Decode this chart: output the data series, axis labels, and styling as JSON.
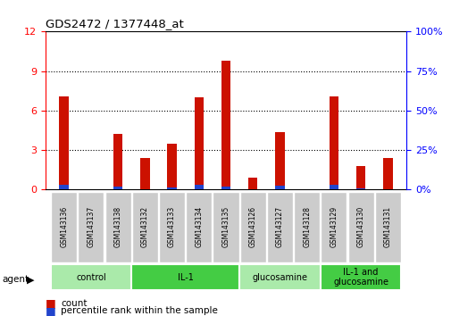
{
  "title": "GDS2472 / 1377448_at",
  "samples": [
    "GSM143136",
    "GSM143137",
    "GSM143138",
    "GSM143132",
    "GSM143133",
    "GSM143134",
    "GSM143135",
    "GSM143126",
    "GSM143127",
    "GSM143128",
    "GSM143129",
    "GSM143130",
    "GSM143131"
  ],
  "count_values": [
    7.1,
    0.0,
    4.2,
    2.4,
    3.5,
    7.0,
    9.8,
    0.9,
    4.4,
    0.0,
    7.1,
    1.8,
    2.4
  ],
  "percentile_values": [
    3.0,
    0.0,
    1.7,
    0.5,
    1.5,
    2.9,
    2.2,
    0.25,
    2.5,
    0.0,
    3.0,
    0.8,
    0.2
  ],
  "groups": [
    {
      "label": "control",
      "start": 0,
      "end": 3,
      "color": "#aaeaaa"
    },
    {
      "label": "IL-1",
      "start": 3,
      "end": 7,
      "color": "#44cc44"
    },
    {
      "label": "glucosamine",
      "start": 7,
      "end": 10,
      "color": "#aaeaaa"
    },
    {
      "label": "IL-1 and\nglucosamine",
      "start": 10,
      "end": 13,
      "color": "#44cc44"
    }
  ],
  "ylim_left": [
    0,
    12
  ],
  "ylim_right": [
    0,
    100
  ],
  "yticks_left": [
    0,
    3,
    6,
    9,
    12
  ],
  "yticks_right": [
    0,
    25,
    50,
    75,
    100
  ],
  "bar_color_count": "#cc1100",
  "bar_color_percentile": "#2244cc",
  "bar_width": 0.35,
  "legend_count_label": "count",
  "legend_percentile_label": "percentile rank within the sample"
}
